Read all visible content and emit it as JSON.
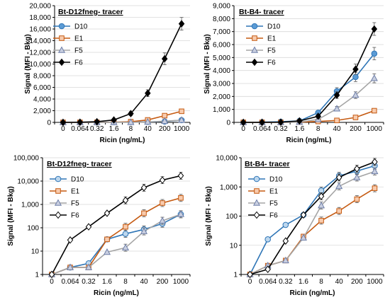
{
  "chart_data": [
    {
      "type": "line",
      "scale": "linear",
      "title": "Bt-D12fneg- tracer",
      "xlabel": "Ricin (ng/mL)",
      "ylabel": "Signal (MFI - Bkg)",
      "categories": [
        "0",
        "0.064",
        "0.32",
        "1.6",
        "8",
        "40",
        "200",
        "1000"
      ],
      "ylim": [
        0,
        20000
      ],
      "yticks": [
        0,
        2000,
        4000,
        6000,
        8000,
        10000,
        12000,
        14000,
        16000,
        18000,
        20000
      ],
      "ytick_labels": [
        "0",
        "2,000",
        "4,000",
        "6,000",
        "8,000",
        "10,000",
        "12,000",
        "14,000",
        "16,000",
        "18,000",
        "20,000"
      ],
      "legend_position": "top-left",
      "series": [
        {
          "name": "D10",
          "values": [
            0,
            2,
            3,
            30,
            50,
            80,
            150,
            380
          ]
        },
        {
          "name": "E1",
          "values": [
            0,
            2,
            2,
            30,
            120,
            420,
            1150,
            1900
          ]
        },
        {
          "name": "F5",
          "values": [
            0,
            2,
            2,
            8,
            12,
            70,
            200,
            380
          ]
        },
        {
          "name": "F6",
          "values": [
            0,
            30,
            110,
            420,
            1500,
            5000,
            10900,
            16900
          ]
        }
      ]
    },
    {
      "type": "line",
      "scale": "linear",
      "title": "Bt-B4- tracer",
      "xlabel": "Ricin (ng/mL)",
      "ylabel": "Signal (MFI - Bkg)",
      "categories": [
        "0",
        "0.064",
        "0.32",
        "1.6",
        "8",
        "40",
        "200",
        "1000"
      ],
      "ylim": [
        0,
        9000
      ],
      "yticks": [
        0,
        1000,
        2000,
        3000,
        4000,
        5000,
        6000,
        7000,
        8000,
        9000
      ],
      "ytick_labels": [
        "0",
        "1,000",
        "2,000",
        "3,000",
        "4,000",
        "5,000",
        "6,000",
        "7,000",
        "8,000",
        "9,000"
      ],
      "legend_position": "top-left",
      "series": [
        {
          "name": "D10",
          "values": [
            0,
            15,
            50,
            110,
            750,
            2400,
            3500,
            5300
          ]
        },
        {
          "name": "E1",
          "values": [
            0,
            2,
            3,
            20,
            70,
            150,
            380,
            900
          ]
        },
        {
          "name": "F5",
          "values": [
            0,
            2,
            3,
            20,
            230,
            1050,
            2100,
            3400
          ]
        },
        {
          "name": "F6",
          "values": [
            0,
            2,
            14,
            110,
            470,
            2100,
            4100,
            7200
          ]
        }
      ]
    },
    {
      "type": "line",
      "scale": "log",
      "title": "Bt-D12fneg- tracer",
      "xlabel": "Ricin (ng/mL)",
      "ylabel": "Signal (MFI - Bkg)",
      "categories": [
        "0",
        "0.064",
        "0.32",
        "1.6",
        "8",
        "40",
        "200",
        "1000"
      ],
      "ylim": [
        1,
        100000
      ],
      "yticks": [
        1,
        10,
        100,
        1000,
        10000,
        100000
      ],
      "ytick_labels": [
        "1",
        "10",
        "100",
        "1,000",
        "10,000",
        "100,000"
      ],
      "legend_position": "top-left",
      "series": [
        {
          "name": "D10",
          "values": [
            1,
            2,
            3,
            32,
            55,
            85,
            150,
            380
          ]
        },
        {
          "name": "E1",
          "values": [
            1,
            2,
            2,
            32,
            110,
            420,
            1150,
            1900
          ]
        },
        {
          "name": "F5",
          "values": [
            1,
            2,
            2,
            9,
            14,
            70,
            200,
            380
          ]
        },
        {
          "name": "F6",
          "values": [
            1,
            30,
            110,
            420,
            1500,
            5200,
            11000,
            17000
          ]
        }
      ]
    },
    {
      "type": "line",
      "scale": "log",
      "title": "Bt-B4- tracer",
      "xlabel": "Ricin (ng/mL)",
      "ylabel": "Signal (MFI - Bkg)",
      "categories": [
        "0",
        "0.064",
        "0.32",
        "1.6",
        "8",
        "40",
        "200",
        "1000"
      ],
      "ylim": [
        1,
        10000
      ],
      "yticks": [
        1,
        10,
        100,
        1000,
        10000
      ],
      "ytick_labels": [
        "1",
        "10",
        "100",
        "1,000",
        "10,000"
      ],
      "legend_position": "top-left",
      "series": [
        {
          "name": "D10",
          "values": [
            1,
            16,
            50,
            110,
            750,
            2400,
            3500,
            5300
          ]
        },
        {
          "name": "E1",
          "values": [
            1,
            2,
            3,
            20,
            70,
            150,
            380,
            900
          ]
        },
        {
          "name": "F5",
          "values": [
            1,
            2,
            3,
            18,
            230,
            1050,
            2100,
            3400
          ]
        },
        {
          "name": "F6",
          "values": [
            1,
            1.5,
            14,
            110,
            480,
            2100,
            4200,
            7200
          ]
        }
      ]
    }
  ],
  "styles": {
    "D10": {
      "color": "#2e75b6",
      "fill_linear": "#5b9bd5",
      "fill_log": "#bdd7ee",
      "marker": "circle"
    },
    "E1": {
      "color": "#c55a11",
      "fill_linear": "#f8cbad",
      "fill_log": "#f8cbad",
      "marker": "square"
    },
    "F5": {
      "color": "#a5a5a5",
      "fill_linear": "#c9cfe0",
      "fill_log": "#c9cfe0",
      "marker": "triangle",
      "stroke": "#6f7fa8"
    },
    "F6": {
      "color": "#000000",
      "fill_linear": "#000000",
      "fill_log": "#ffffff",
      "marker": "diamond"
    }
  }
}
